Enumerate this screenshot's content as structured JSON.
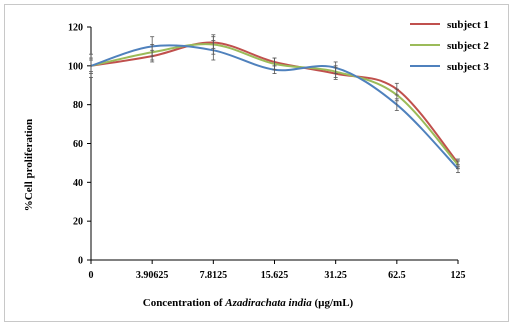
{
  "chart_data": {
    "type": "line",
    "categories": [
      "0",
      "3.90625",
      "7.8125",
      "15.625",
      "31.25",
      "62.5",
      "125"
    ],
    "ylabel": "%Cell proliferation",
    "xlabel_prefix": "Concentration of ",
    "xlabel_italic": "Azadirachata india",
    "xlabel_suffix": " (µg/mL)",
    "ylim": [
      0,
      120
    ],
    "yticks": [
      "0",
      "20",
      "40",
      "60",
      "80",
      "100",
      "120"
    ],
    "grid": false,
    "legend_position": "top-right",
    "series": [
      {
        "name": "subject 1",
        "color": "#c0504d",
        "values": [
          100,
          105,
          112,
          102,
          96,
          88,
          50
        ],
        "errors": [
          6,
          3,
          3,
          2,
          3,
          3,
          2
        ]
      },
      {
        "name": "subject 2",
        "color": "#9bbb59",
        "values": [
          100,
          107,
          111,
          101,
          97,
          85,
          49
        ],
        "errors": [
          4,
          4,
          5,
          3,
          3,
          3,
          2
        ]
      },
      {
        "name": "subject 3",
        "color": "#4f81bd",
        "values": [
          100,
          110,
          108,
          98,
          99,
          80,
          47
        ],
        "errors": [
          3,
          5,
          5,
          2,
          3,
          3,
          2
        ]
      }
    ]
  }
}
